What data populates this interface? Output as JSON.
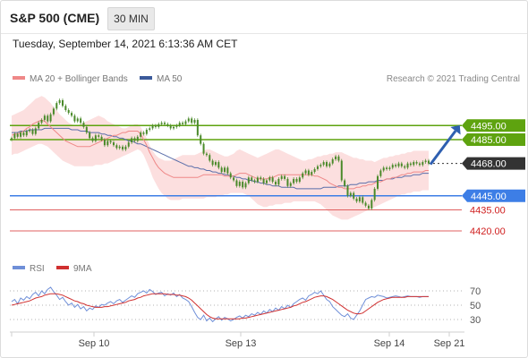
{
  "header": {
    "title": "S&P 500 (CME)",
    "timeframe": "30 MIN"
  },
  "datetime": "Tuesday, September 14, 2021 6:13:36 AM CET",
  "legend": {
    "ma20": "MA 20 + Bollinger Bands",
    "ma50": "MA 50",
    "copyright": "Research © 2021 Trading Central"
  },
  "rsi_legend": {
    "rsi": "RSI",
    "ma": "9MA"
  },
  "colors": {
    "resistance": "#5ea30f",
    "support": "#3d7ee6",
    "pivot": "#333333",
    "weak_level": "#e06060",
    "candle": "#4a8a2a",
    "bollinger_fill": "#fbd4d4",
    "ma20": "#ef8888",
    "ma50": "#5a6eaa",
    "arrow": "#2e5fb0",
    "rsi_line": "#6f8fd8",
    "rsi_ma": "#d03030"
  },
  "chart_data": [
    {
      "type": "candlestick",
      "title": "S&P 500 (CME)",
      "timeframe": "30 MIN",
      "x_ticks": [
        "Sep 10",
        "Sep 13",
        "Sep 14",
        "Sep 21"
      ],
      "ylim": [
        4413,
        4520
      ],
      "levels": [
        {
          "value": 4495.0,
          "label": "4495.00",
          "kind": "resistance"
        },
        {
          "value": 4485.0,
          "label": "4485.00",
          "kind": "resistance"
        },
        {
          "value": 4468.0,
          "label": "4468.00",
          "kind": "pivot"
        },
        {
          "value": 4445.0,
          "label": "4445.00",
          "kind": "support"
        },
        {
          "value": 4435.0,
          "label": "4435.00",
          "kind": "weak"
        },
        {
          "value": 4420.0,
          "label": "4420.00",
          "kind": "weak"
        }
      ],
      "close": [
        4486,
        4489,
        4487,
        4490,
        4488,
        4491,
        4492,
        4489,
        4493,
        4497,
        4499,
        4502,
        4498,
        4503,
        4507,
        4511,
        4513,
        4509,
        4506,
        4504,
        4502,
        4498,
        4500,
        4497,
        4494,
        4490,
        4486,
        4484,
        4488,
        4487,
        4485,
        4481,
        4484,
        4483,
        4481,
        4479,
        4480,
        4478,
        4480,
        4483,
        4486,
        4484,
        4487,
        4490,
        4489,
        4492,
        4493,
        4495,
        4494,
        4496,
        4497,
        4496,
        4495,
        4493,
        4494,
        4495,
        4497,
        4496,
        4498,
        4500,
        4497,
        4499,
        4488,
        4482,
        4475,
        4474,
        4470,
        4467,
        4469,
        4465,
        4462,
        4465,
        4461,
        4458,
        4456,
        4452,
        4455,
        4451,
        4454,
        4458,
        4456,
        4455,
        4458,
        4457,
        4454,
        4456,
        4458,
        4455,
        4453,
        4457,
        4459,
        4457,
        4452,
        4454,
        4457,
        4455,
        4458,
        4461,
        4463,
        4460,
        4462,
        4464,
        4466,
        4467,
        4469,
        4466,
        4468,
        4471,
        4473,
        4470,
        4456,
        4452,
        4445,
        4447,
        4443,
        4441,
        4444,
        4440,
        4438,
        4436,
        4442,
        4450,
        4459,
        4463,
        4465,
        4464,
        4465,
        4467,
        4466,
        4468,
        4466,
        4465,
        4468,
        4467,
        4469,
        4468,
        4467,
        4469,
        4470,
        4468
      ],
      "bollinger_upper": [
        4502,
        4503,
        4504,
        4505,
        4506,
        4508,
        4510,
        4512,
        4514,
        4515,
        4516,
        4515,
        4513,
        4511,
        4508,
        4506,
        4503,
        4501,
        4499,
        4497,
        4496,
        4495,
        4495,
        4496,
        4497,
        4498,
        4499,
        4500,
        4501,
        4502,
        4501,
        4500,
        4498,
        4497,
        4496,
        4495,
        4494,
        4493,
        4493,
        4494,
        4495,
        4496,
        4496,
        4494,
        4490,
        4486,
        4481,
        4477,
        4474,
        4472,
        4471,
        4470,
        4470,
        4470,
        4471,
        4472,
        4473,
        4474,
        4474,
        4474,
        4474,
        4474,
        4475,
        4476,
        4477,
        4478,
        4478,
        4477,
        4476,
        4475,
        4474,
        4473,
        4473,
        4474,
        4475,
        4477,
        4478,
        4477,
        4476,
        4475,
        4474,
        4473,
        4472,
        4473,
        4474,
        4475,
        4476,
        4477,
        4478,
        4478,
        4477,
        4476,
        4475,
        4474,
        4473,
        4472,
        4471,
        4470,
        4470,
        4471,
        4471,
        4472,
        4473,
        4473,
        4474,
        4474,
        4475,
        4475,
        4476,
        4476,
        4476,
        4475,
        4474,
        4473,
        4472,
        4472,
        4471,
        4471,
        4470,
        4470,
        4470,
        4469,
        4470,
        4471,
        4472,
        4472,
        4473,
        4473,
        4474,
        4474,
        4475,
        4475,
        4476,
        4476,
        4477,
        4477,
        4477,
        4477,
        4477,
        4477
      ],
      "bollinger_lower": [
        4474,
        4475,
        4475,
        4476,
        4477,
        4478,
        4479,
        4480,
        4481,
        4482,
        4482,
        4481,
        4480,
        4478,
        4476,
        4474,
        4472,
        4470,
        4469,
        4468,
        4467,
        4466,
        4466,
        4466,
        4466,
        4466,
        4466,
        4466,
        4467,
        4467,
        4467,
        4468,
        4468,
        4469,
        4470,
        4471,
        4472,
        4473,
        4474,
        4475,
        4476,
        4477,
        4478,
        4477,
        4474,
        4469,
        4464,
        4458,
        4454,
        4450,
        4447,
        4445,
        4443,
        4442,
        4442,
        4442,
        4442,
        4443,
        4443,
        4443,
        4443,
        4443,
        4443,
        4443,
        4443,
        4444,
        4444,
        4444,
        4444,
        4445,
        4445,
        4446,
        4446,
        4447,
        4447,
        4447,
        4447,
        4447,
        4446,
        4445,
        4443,
        4441,
        4439,
        4438,
        4437,
        4437,
        4438,
        4438,
        4439,
        4439,
        4439,
        4440,
        4440,
        4440,
        4441,
        4441,
        4441,
        4441,
        4441,
        4441,
        4441,
        4441,
        4440,
        4439,
        4437,
        4435,
        4433,
        4431,
        4430,
        4429,
        4428,
        4428,
        4428,
        4429,
        4430,
        4431,
        4432,
        4433,
        4434,
        4435,
        4436,
        4437,
        4438,
        4439,
        4440,
        4441,
        4442,
        4443,
        4444,
        4445,
        4446,
        4446,
        4447,
        4447,
        4448,
        4448,
        4448,
        4449,
        4449,
        4449
      ],
      "ma20": [
        4488,
        4489,
        4489,
        4490,
        4491,
        4493,
        4494,
        4496,
        4497,
        4498,
        4499,
        4498,
        4496,
        4494,
        4492,
        4490,
        4488,
        4486,
        4484,
        4483,
        4482,
        4481,
        4480,
        4480,
        4480,
        4480,
        4480,
        4481,
        4482,
        4483,
        4484,
        4485,
        4486,
        4487,
        4488,
        4488,
        4489,
        4490,
        4490,
        4491,
        4491,
        4491,
        4491,
        4489,
        4485,
        4481,
        4476,
        4472,
        4468,
        4465,
        4463,
        4461,
        4460,
        4459,
        4458,
        4458,
        4458,
        4458,
        4458,
        4458,
        4458,
        4458,
        4458,
        4459,
        4460,
        4460,
        4460,
        4460,
        4460,
        4460,
        4460,
        4459,
        4459,
        4459,
        4459,
        4460,
        4461,
        4461,
        4461,
        4460,
        4459,
        4458,
        4457,
        4457,
        4457,
        4457,
        4458,
        4458,
        4459,
        4460,
        4460,
        4460,
        4460,
        4460,
        4460,
        4460,
        4460,
        4460,
        4460,
        4460,
        4460,
        4459,
        4459,
        4458,
        4457,
        4456,
        4454,
        4453,
        4452,
        4451,
        4451,
        4450,
        4450,
        4450,
        4450,
        4451,
        4451,
        4452,
        4452,
        4453,
        4453,
        4454,
        4455,
        4455,
        4456,
        4457,
        4457,
        4458,
        4458,
        4459,
        4460,
        4460,
        4461,
        4461,
        4462,
        4462,
        4462,
        4462,
        4463,
        4463
      ],
      "ma50": [
        4490,
        4490,
        4490,
        4491,
        4491,
        4491,
        4492,
        4492,
        4492,
        4492,
        4492,
        4493,
        4493,
        4493,
        4493,
        4493,
        4493,
        4493,
        4493,
        4493,
        4492,
        4492,
        4492,
        4491,
        4491,
        4491,
        4490,
        4490,
        4490,
        4490,
        4489,
        4489,
        4488,
        4488,
        4487,
        4487,
        4486,
        4486,
        4485,
        4484,
        4484,
        4483,
        4482,
        4482,
        4481,
        4480,
        4479,
        4478,
        4477,
        4476,
        4475,
        4474,
        4473,
        4472,
        4471,
        4470,
        4469,
        4468,
        4467,
        4466,
        4466,
        4465,
        4465,
        4464,
        4464,
        4463,
        4463,
        4462,
        4462,
        4461,
        4461,
        4460,
        4460,
        4459,
        4459,
        4458,
        4458,
        4457,
        4457,
        4456,
        4456,
        4455,
        4455,
        4454,
        4454,
        4453,
        4453,
        4452,
        4452,
        4452,
        4451,
        4451,
        4451,
        4451,
        4451,
        4450,
        4450,
        4450,
        4450,
        4450,
        4450,
        4450,
        4450,
        4450,
        4451,
        4451,
        4451,
        4451,
        4451,
        4452,
        4452,
        4452,
        4452,
        4453,
        4453,
        4453,
        4454,
        4454,
        4454,
        4455,
        4455,
        4455,
        4456,
        4456,
        4456,
        4457,
        4457,
        4457,
        4458,
        4458,
        4458,
        4459,
        4459,
        4459,
        4460,
        4460,
        4460,
        4461,
        4461,
        4461
      ],
      "forecast_arrow": {
        "from": 4468,
        "to": 4495
      }
    },
    {
      "type": "line",
      "title": "RSI",
      "series": [
        {
          "name": "RSI",
          "values": [
            55,
            58,
            52,
            60,
            57,
            62,
            59,
            65,
            68,
            63,
            70,
            66,
            72,
            75,
            69,
            64,
            58,
            61,
            55,
            50,
            53,
            47,
            51,
            45,
            48,
            42,
            46,
            44,
            49,
            47,
            51,
            50,
            53,
            55,
            52,
            56,
            58,
            54,
            57,
            60,
            63,
            61,
            66,
            68,
            70,
            67,
            72,
            69,
            65,
            67,
            68,
            63,
            66,
            64,
            67,
            62,
            65,
            60,
            58,
            55,
            48,
            40,
            33,
            30,
            36,
            28,
            32,
            27,
            31,
            34,
            29,
            33,
            31,
            28,
            30,
            33,
            35,
            32,
            36,
            34,
            38,
            36,
            40,
            37,
            42,
            39,
            44,
            41,
            46,
            43,
            48,
            45,
            50,
            47,
            52,
            55,
            58,
            60,
            57,
            63,
            65,
            68,
            66,
            70,
            64,
            58,
            55,
            48,
            44,
            40,
            36,
            34,
            38,
            32,
            30,
            36,
            42,
            50,
            58,
            60,
            62,
            61,
            64,
            63,
            62,
            60,
            61,
            62,
            63,
            62,
            61,
            62,
            63,
            62,
            62,
            62,
            61,
            62,
            62,
            62
          ]
        },
        {
          "name": "9MA",
          "values": [
            50,
            51,
            52,
            53,
            54,
            55,
            56,
            58,
            60,
            61,
            62,
            64,
            65,
            66,
            66,
            66,
            65,
            64,
            62,
            60,
            58,
            56,
            55,
            53,
            52,
            50,
            49,
            48,
            47,
            47,
            47,
            48,
            48,
            49,
            50,
            51,
            52,
            53,
            54,
            56,
            57,
            58,
            60,
            61,
            63,
            64,
            65,
            66,
            66,
            66,
            66,
            66,
            65,
            65,
            65,
            64,
            64,
            63,
            62,
            60,
            57,
            53,
            49,
            45,
            41,
            37,
            34,
            32,
            31,
            31,
            31,
            31,
            31,
            31,
            31,
            31,
            31,
            32,
            32,
            33,
            34,
            35,
            36,
            37,
            38,
            39,
            40,
            41,
            42,
            43,
            44,
            45,
            46,
            47,
            49,
            50,
            52,
            54,
            55,
            57,
            59,
            61,
            62,
            63,
            63,
            62,
            60,
            58,
            55,
            52,
            49,
            46,
            43,
            41,
            39,
            38,
            38,
            39,
            42,
            45,
            48,
            51,
            54,
            56,
            58,
            59,
            60,
            61,
            61,
            61,
            61,
            61,
            62,
            62,
            62,
            62,
            62,
            62,
            62,
            62
          ]
        }
      ],
      "y_ticks": [
        30,
        50,
        70
      ],
      "ylim": [
        15,
        85
      ]
    }
  ]
}
